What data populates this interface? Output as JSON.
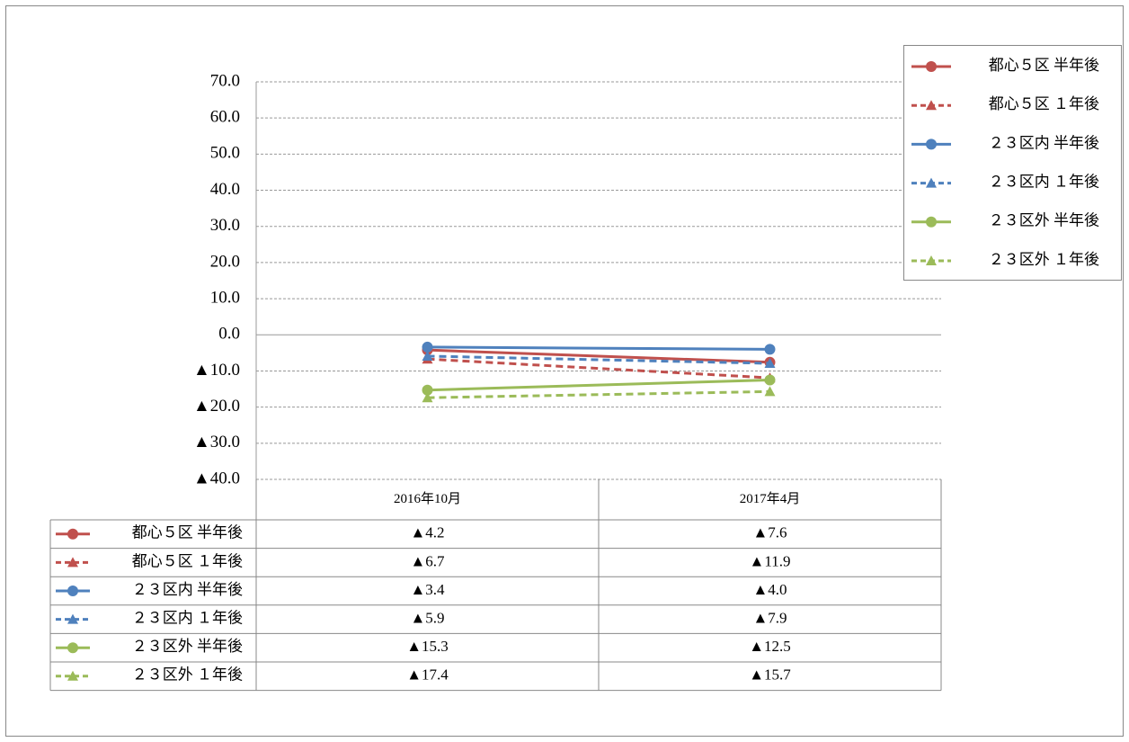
{
  "chart_data": {
    "type": "line",
    "categories": [
      "2016年10月",
      "2017年4月"
    ],
    "ylim": [
      -40,
      70
    ],
    "yticks": [
      {
        "value": -40,
        "label": "▲40.0"
      },
      {
        "value": -30,
        "label": "▲30.0"
      },
      {
        "value": -20,
        "label": "▲20.0"
      },
      {
        "value": -10,
        "label": "▲10.0"
      },
      {
        "value": 0,
        "label": "0.0"
      },
      {
        "value": 10,
        "label": "10.0"
      },
      {
        "value": 20,
        "label": "20.0"
      },
      {
        "value": 30,
        "label": "30.0"
      },
      {
        "value": 40,
        "label": "40.0"
      },
      {
        "value": 50,
        "label": "50.0"
      },
      {
        "value": 60,
        "label": "60.0"
      },
      {
        "value": 70,
        "label": "70.0"
      }
    ],
    "grid": true,
    "legend": "top-right",
    "series": [
      {
        "name": "都心５区 半年後",
        "color": "#c0504d",
        "line_style": "solid",
        "marker": "circle",
        "values": [
          -4.2,
          -7.6
        ],
        "value_labels": [
          "▲4.2",
          "▲7.6"
        ]
      },
      {
        "name": "都心５区 １年後",
        "color": "#c0504d",
        "line_style": "dashed",
        "marker": "triangle",
        "values": [
          -6.7,
          -11.9
        ],
        "value_labels": [
          "▲6.7",
          "▲11.9"
        ]
      },
      {
        "name": "２３区内 半年後",
        "color": "#4f81bd",
        "line_style": "solid",
        "marker": "circle",
        "values": [
          -3.4,
          -4.0
        ],
        "value_labels": [
          "▲3.4",
          "▲4.0"
        ]
      },
      {
        "name": "２３区内 １年後",
        "color": "#4f81bd",
        "line_style": "dashed",
        "marker": "triangle",
        "values": [
          -5.9,
          -7.9
        ],
        "value_labels": [
          "▲5.9",
          "▲7.9"
        ]
      },
      {
        "name": "２３区外 半年後",
        "color": "#9bbb59",
        "line_style": "solid",
        "marker": "circle",
        "values": [
          -15.3,
          -12.5
        ],
        "value_labels": [
          "▲15.3",
          "▲12.5"
        ]
      },
      {
        "name": "２３区外 １年後",
        "color": "#9bbb59",
        "line_style": "dashed",
        "marker": "triangle",
        "values": [
          -17.4,
          -15.7
        ],
        "value_labels": [
          "▲17.4",
          "▲15.7"
        ]
      }
    ]
  }
}
